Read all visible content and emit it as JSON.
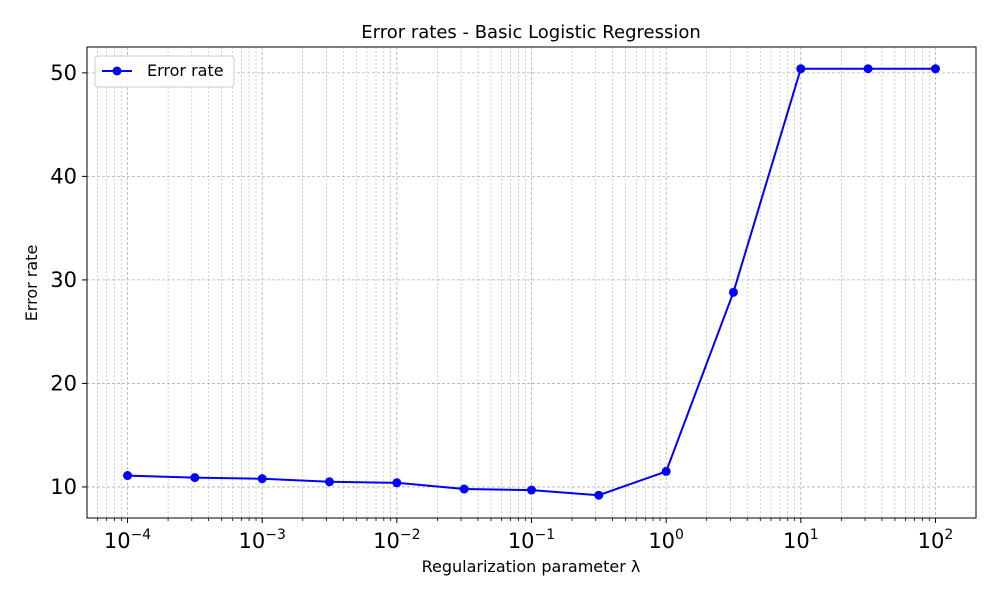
{
  "chart_data": {
    "type": "line",
    "title": "Error rates - Basic Logistic Regression",
    "xlabel": "Regularization parameter λ",
    "ylabel": "Error rate",
    "x_scale": "log",
    "xlim": [
      5e-05,
      200
    ],
    "ylim": [
      7,
      52.5
    ],
    "grid": true,
    "legend_position": "top-left",
    "x_ticks": [
      {
        "base": "10",
        "exp": "−4",
        "value": 0.0001
      },
      {
        "base": "10",
        "exp": "−3",
        "value": 0.001
      },
      {
        "base": "10",
        "exp": "−2",
        "value": 0.01
      },
      {
        "base": "10",
        "exp": "−1",
        "value": 0.1
      },
      {
        "base": "10",
        "exp": "0",
        "value": 1
      },
      {
        "base": "10",
        "exp": "1",
        "value": 10
      },
      {
        "base": "10",
        "exp": "2",
        "value": 100
      }
    ],
    "y_ticks": [
      10,
      20,
      30,
      40,
      50
    ],
    "series": [
      {
        "name": "Error rate",
        "color": "#0000ff",
        "marker": "circle",
        "x": [
          0.0001,
          0.000316,
          0.001,
          0.00316,
          0.01,
          0.0316,
          0.1,
          0.316,
          1,
          3.16,
          10,
          31.6,
          100
        ],
        "y": [
          11.1,
          10.9,
          10.8,
          10.5,
          10.4,
          9.8,
          9.7,
          9.2,
          11.5,
          28.8,
          50.4,
          50.4,
          50.4
        ]
      }
    ]
  }
}
